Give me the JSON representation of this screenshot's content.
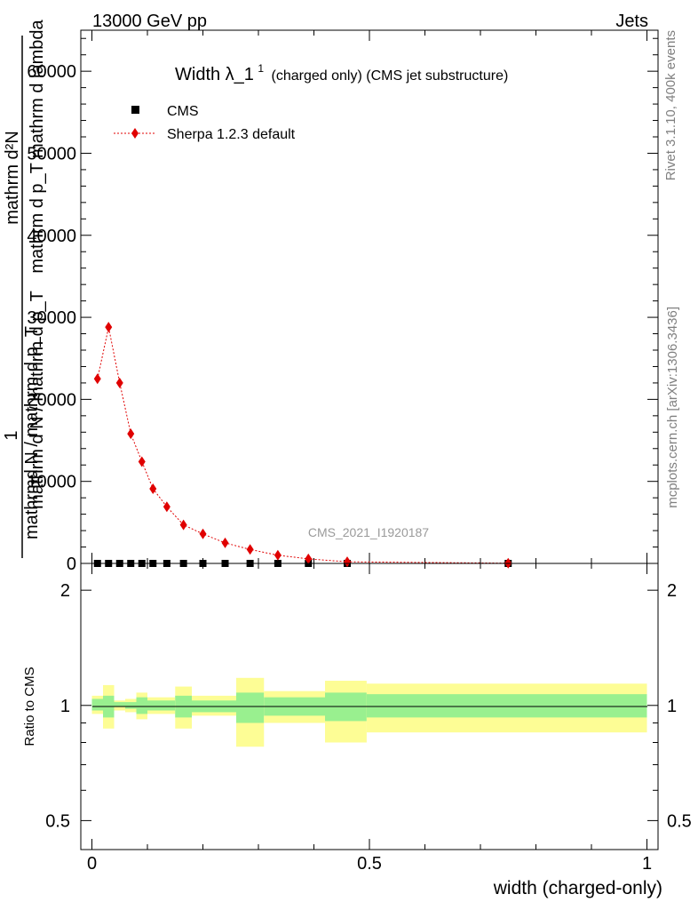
{
  "header": {
    "left": "13000 GeV pp",
    "right": "Jets"
  },
  "side_labels": {
    "rivet": "Rivet 3.1.10,  400k events",
    "mcplots": "mcplots.cern.ch [arXiv:1306.3436]"
  },
  "chart_data": {
    "type": "scatter",
    "title_main": "Width λ_1",
    "title_sup": "1",
    "title_suffix": "(charged only) (CMS jet substructure)",
    "watermark": "CMS_2021_I1920187",
    "xlabel": "width (charged-only)",
    "ylabel_top_line1": "mathrm d²N",
    "ylabel_top_line2": "mathrm d p_T  mathrm d lambda",
    "ylabel_top_line3": "mathrm d N / mathrm d p_T",
    "ylabel_frac": "1",
    "ylabel_bottom": "mathrmd N / mathrm d p_T",
    "ylabel_ratio": "Ratio to CMS",
    "xlim": [
      -0.02,
      1.02
    ],
    "ylim": [
      0,
      65000
    ],
    "x_ticks": [
      "0",
      "0.5",
      "1"
    ],
    "y_ticks": [
      "0",
      "10000",
      "20000",
      "30000",
      "40000",
      "50000",
      "60000"
    ],
    "ratio_ylim": [
      0.42,
      2.35
    ],
    "ratio_ticks": [
      "0.5",
      "1",
      "2"
    ],
    "legend": {
      "position": "top-left",
      "entries": [
        "CMS",
        "Sherpa 1.2.3 default"
      ]
    },
    "colors": {
      "data": "#000000",
      "mc": "#e00000",
      "band_inner": "#99f08f",
      "band_outer": "#fdfd95"
    },
    "series": [
      {
        "name": "CMS",
        "marker": "square",
        "x": [
          0.01,
          0.03,
          0.05,
          0.07,
          0.09,
          0.11,
          0.135,
          0.165,
          0.2,
          0.24,
          0.285,
          0.335,
          0.39,
          0.46,
          0.75
        ],
        "y": [
          0,
          0,
          0,
          0,
          0,
          0,
          0,
          0,
          0,
          0,
          0,
          0,
          0,
          0,
          0
        ]
      },
      {
        "name": "Sherpa 1.2.3 default",
        "marker": "diamond",
        "x": [
          0.01,
          0.03,
          0.05,
          0.07,
          0.09,
          0.11,
          0.135,
          0.165,
          0.2,
          0.24,
          0.285,
          0.335,
          0.39,
          0.46,
          0.75
        ],
        "y": [
          22500,
          28800,
          22000,
          15800,
          12400,
          9100,
          6900,
          4700,
          3600,
          2500,
          1700,
          1000,
          550,
          200,
          30
        ]
      }
    ],
    "ratio_bands": [
      {
        "x0": 0.0,
        "x1": 0.02,
        "inner": [
          0.97,
          1.04
        ],
        "outer": [
          0.95,
          1.06
        ]
      },
      {
        "x0": 0.02,
        "x1": 0.04,
        "inner": [
          0.93,
          1.06
        ],
        "outer": [
          0.87,
          1.13
        ]
      },
      {
        "x0": 0.04,
        "x1": 0.06,
        "inner": [
          0.99,
          1.02
        ],
        "outer": [
          0.97,
          1.03
        ]
      },
      {
        "x0": 0.06,
        "x1": 0.08,
        "inner": [
          0.98,
          1.02
        ],
        "outer": [
          0.96,
          1.04
        ]
      },
      {
        "x0": 0.08,
        "x1": 0.1,
        "inner": [
          0.95,
          1.05
        ],
        "outer": [
          0.92,
          1.08
        ]
      },
      {
        "x0": 0.1,
        "x1": 0.12,
        "inner": [
          0.97,
          1.03
        ],
        "outer": [
          0.95,
          1.05
        ]
      },
      {
        "x0": 0.12,
        "x1": 0.15,
        "inner": [
          0.97,
          1.03
        ],
        "outer": [
          0.95,
          1.05
        ]
      },
      {
        "x0": 0.15,
        "x1": 0.18,
        "inner": [
          0.93,
          1.06
        ],
        "outer": [
          0.87,
          1.12
        ]
      },
      {
        "x0": 0.18,
        "x1": 0.22,
        "inner": [
          0.96,
          1.03
        ],
        "outer": [
          0.94,
          1.06
        ]
      },
      {
        "x0": 0.22,
        "x1": 0.26,
        "inner": [
          0.96,
          1.03
        ],
        "outer": [
          0.94,
          1.06
        ]
      },
      {
        "x0": 0.26,
        "x1": 0.31,
        "inner": [
          0.9,
          1.08
        ],
        "outer": [
          0.78,
          1.18
        ]
      },
      {
        "x0": 0.31,
        "x1": 0.36,
        "inner": [
          0.94,
          1.05
        ],
        "outer": [
          0.9,
          1.09
        ]
      },
      {
        "x0": 0.36,
        "x1": 0.42,
        "inner": [
          0.94,
          1.05
        ],
        "outer": [
          0.9,
          1.09
        ]
      },
      {
        "x0": 0.42,
        "x1": 0.495,
        "inner": [
          0.91,
          1.08
        ],
        "outer": [
          0.8,
          1.16
        ]
      },
      {
        "x0": 0.495,
        "x1": 1.0,
        "inner": [
          0.93,
          1.07
        ],
        "outer": [
          0.85,
          1.14
        ]
      }
    ]
  }
}
